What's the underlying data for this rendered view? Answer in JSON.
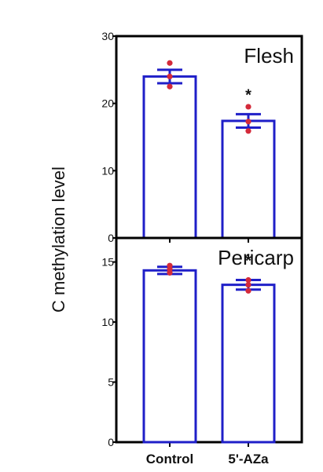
{
  "chart_data": {
    "type": "bar",
    "ylabel": "C methylation level",
    "categories": [
      "Control",
      "5'-AZa"
    ],
    "bar_color": "#1f1fc8",
    "error_color": "#1f1fc8",
    "point_color": "#d42a3a",
    "panels": [
      {
        "title": "Flesh",
        "ylim": [
          0,
          30
        ],
        "yticks": [
          "0",
          "10",
          "20",
          "30"
        ],
        "ytick_values": [
          0,
          10,
          20,
          30
        ],
        "values": [
          24.0,
          17.4
        ],
        "errors": [
          1.0,
          1.0
        ],
        "points": [
          [
            26.0,
            24.0,
            22.5
          ],
          [
            19.5,
            17.3,
            15.9
          ]
        ],
        "significance": [
          "",
          "*"
        ]
      },
      {
        "title": "Pericarp",
        "ylim": [
          0,
          17
        ],
        "yticks": [
          "0",
          "5",
          "10",
          "15"
        ],
        "ytick_values": [
          0,
          5,
          10,
          15
        ],
        "values": [
          14.3,
          13.1
        ],
        "errors": [
          0.3,
          0.4
        ],
        "points": [
          [
            14.7,
            14.4,
            14.1
          ],
          [
            13.5,
            13.1,
            12.6
          ]
        ],
        "significance": [
          "",
          "*"
        ]
      }
    ]
  }
}
